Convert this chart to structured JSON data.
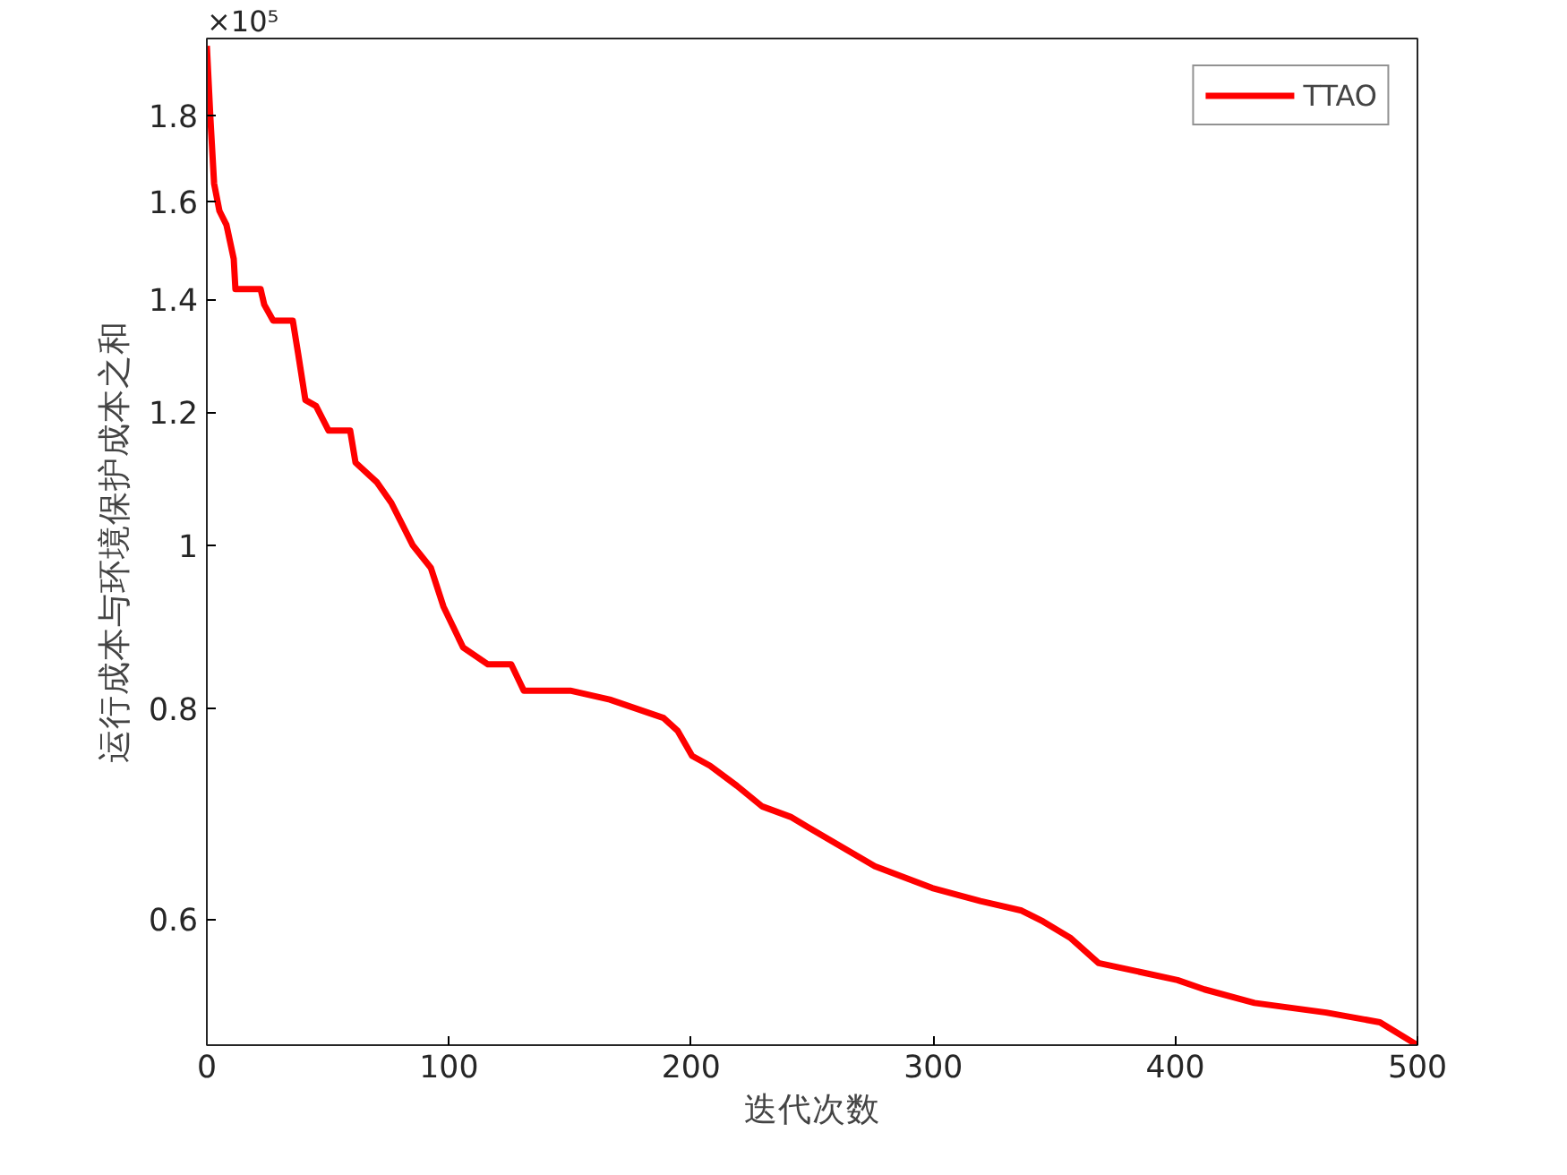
{
  "chart_data": {
    "type": "line",
    "xlabel": "迭代次数",
    "ylabel": "运行成本与环境保护成本之和",
    "annotations": [
      "×10⁵"
    ],
    "log": "y",
    "xlim": [
      0,
      500
    ],
    "ylim": [
      0.505,
      2.0
    ],
    "xticks": [
      0,
      100,
      200,
      300,
      400,
      500
    ],
    "yticks": [
      0.6,
      0.8,
      1,
      1.2,
      1.4,
      1.6,
      1.8
    ],
    "grid": false,
    "legend": "top right",
    "marker": "none",
    "line_style": "solid",
    "series": [
      {
        "name": "TTAO",
        "color": "#ff0000",
        "x": [
          0,
          1.5,
          3,
          5.2,
          8.1,
          11.1,
          11.8,
          22.2,
          23.7,
          27.4,
          35.5,
          37.7,
          40.7,
          45.1,
          50.3,
          59.2,
          61.4,
          70.3,
          76.2,
          85.1,
          92.5,
          97.7,
          105.8,
          116.1,
          125.7,
          130.9,
          150.1,
          166.4,
          188.6,
          194.5,
          200.4,
          207.8,
          218.9,
          229.3,
          241.1,
          248.5,
          275.9,
          299.6,
          319.5,
          336.5,
          345.4,
          356.5,
          368.3,
          388.3,
          400.9,
          412,
          432.7,
          462.3,
          484.5,
          500
        ],
        "values": [
          1.98,
          1.79,
          1.64,
          1.58,
          1.55,
          1.48,
          1.42,
          1.42,
          1.39,
          1.36,
          1.36,
          1.3,
          1.22,
          1.21,
          1.17,
          1.17,
          1.12,
          1.09,
          1.06,
          1.0,
          0.97,
          0.92,
          0.87,
          0.85,
          0.85,
          0.82,
          0.82,
          0.81,
          0.79,
          0.776,
          0.75,
          0.74,
          0.72,
          0.7,
          0.69,
          0.68,
          0.645,
          0.626,
          0.615,
          0.607,
          0.598,
          0.585,
          0.565,
          0.557,
          0.552,
          0.545,
          0.535,
          0.528,
          0.521,
          0.505
        ]
      }
    ]
  }
}
